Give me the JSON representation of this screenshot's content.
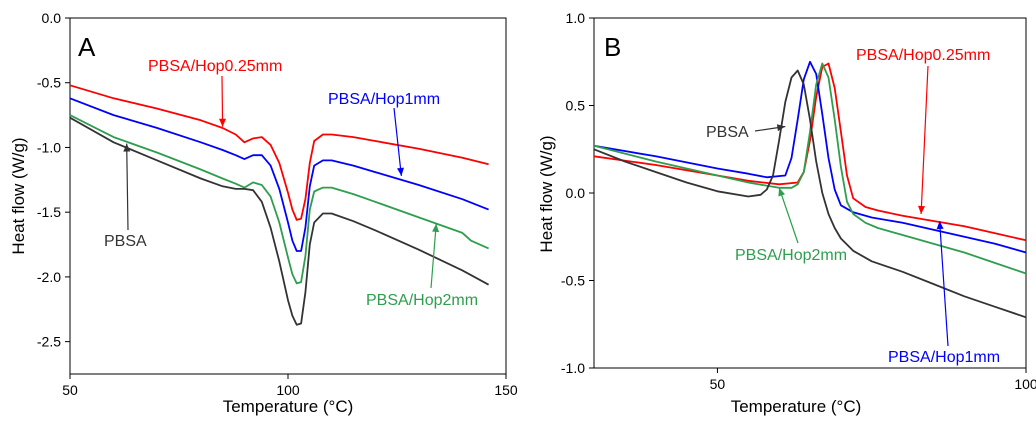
{
  "chart_data": [
    {
      "type": "line",
      "panel_label": "A",
      "xlabel": "Temperature (°C)",
      "ylabel": "Heat flow (W/g)",
      "xlim": [
        50,
        150
      ],
      "ylim": [
        -2.75,
        0.0
      ],
      "xticks": [
        50,
        100,
        150
      ],
      "xtick_labels": [
        "50",
        "100",
        "150"
      ],
      "yticks": [
        0.0,
        -0.5,
        -1.0,
        -1.5,
        -2.0,
        -2.5
      ],
      "ytick_labels": [
        "0.0",
        "-0.5",
        "-1.0",
        "-1.5",
        "-2.0",
        "-2.5"
      ],
      "grid": false,
      "series": [
        {
          "name": "PBSA/Hop0.25mm",
          "color": "#ff0000",
          "x": [
            50,
            60,
            70,
            80,
            85,
            88,
            90,
            92,
            94,
            96,
            98,
            100,
            101,
            102,
            103,
            104,
            105,
            106,
            108,
            110,
            115,
            120,
            130,
            140,
            146
          ],
          "y": [
            -0.52,
            -0.62,
            -0.7,
            -0.79,
            -0.85,
            -0.9,
            -0.96,
            -0.93,
            -0.92,
            -0.98,
            -1.12,
            -1.35,
            -1.48,
            -1.56,
            -1.55,
            -1.4,
            -1.12,
            -0.95,
            -0.9,
            -0.9,
            -0.92,
            -0.95,
            -1.01,
            -1.08,
            -1.13
          ]
        },
        {
          "name": "PBSA/Hop1mm",
          "color": "#0000ff",
          "x": [
            50,
            60,
            70,
            80,
            85,
            88,
            90,
            92,
            94,
            96,
            98,
            100,
            101,
            102,
            103,
            104,
            105,
            106,
            108,
            110,
            115,
            120,
            130,
            140,
            146
          ],
          "y": [
            -0.62,
            -0.75,
            -0.85,
            -0.96,
            -1.02,
            -1.06,
            -1.09,
            -1.06,
            -1.06,
            -1.14,
            -1.32,
            -1.58,
            -1.72,
            -1.8,
            -1.8,
            -1.62,
            -1.3,
            -1.14,
            -1.1,
            -1.1,
            -1.14,
            -1.19,
            -1.29,
            -1.4,
            -1.48
          ]
        },
        {
          "name": "PBSA/Hop2mm",
          "color": "#2e9e4e",
          "x": [
            50,
            60,
            70,
            80,
            85,
            88,
            90,
            92,
            94,
            96,
            98,
            100,
            101,
            102,
            103,
            104,
            105,
            106,
            108,
            110,
            115,
            120,
            130,
            140,
            142,
            146
          ],
          "y": [
            -0.75,
            -0.92,
            -1.04,
            -1.17,
            -1.24,
            -1.28,
            -1.31,
            -1.27,
            -1.29,
            -1.38,
            -1.58,
            -1.85,
            -1.98,
            -2.05,
            -2.04,
            -1.84,
            -1.48,
            -1.34,
            -1.31,
            -1.31,
            -1.36,
            -1.42,
            -1.54,
            -1.66,
            -1.72,
            -1.78
          ]
        },
        {
          "name": "PBSA",
          "color": "#333333",
          "x": [
            50,
            60,
            70,
            80,
            85,
            88,
            90,
            92,
            94,
            96,
            98,
            100,
            101,
            102,
            103,
            104,
            105,
            106,
            108,
            110,
            115,
            120,
            130,
            140,
            146
          ],
          "y": [
            -0.77,
            -0.96,
            -1.1,
            -1.24,
            -1.3,
            -1.32,
            -1.32,
            -1.33,
            -1.42,
            -1.62,
            -1.88,
            -2.18,
            -2.3,
            -2.37,
            -2.36,
            -2.12,
            -1.75,
            -1.58,
            -1.51,
            -1.51,
            -1.57,
            -1.64,
            -1.79,
            -1.95,
            -2.06
          ]
        }
      ],
      "annotations": [
        {
          "text": "PBSA/Hop0.25mm",
          "color": "#ff0000",
          "arrow_to": [
            85,
            -0.84
          ]
        },
        {
          "text": "PBSA/Hop1mm",
          "color": "#0000ff",
          "arrow_to": [
            126,
            -1.22
          ]
        },
        {
          "text": "PBSA/Hop2mm",
          "color": "#2e9e4e",
          "arrow_to": [
            134,
            -1.59
          ]
        },
        {
          "text": "PBSA",
          "color": "#333333",
          "arrow_to": [
            63,
            -0.97
          ]
        }
      ]
    },
    {
      "type": "line",
      "panel_label": "B",
      "xlabel": "Temperature (°C)",
      "ylabel": "Heat flow (W/g)",
      "xlim": [
        30,
        100
      ],
      "ylim": [
        -1.0,
        1.0
      ],
      "xticks": [
        50,
        100
      ],
      "xtick_labels": [
        "50",
        "100"
      ],
      "yticks": [
        1.0,
        0.5,
        0.0,
        -0.5,
        -1.0
      ],
      "ytick_labels": [
        "1.0",
        "0.5",
        "0.0",
        "-0.5",
        "-1.0"
      ],
      "grid": false,
      "series": [
        {
          "name": "PBSA/Hop0.25mm",
          "color": "#ff0000",
          "x": [
            30,
            40,
            50,
            55,
            60,
            63,
            64,
            65,
            66,
            67,
            68,
            69,
            70,
            71,
            72,
            74,
            76,
            80,
            85,
            90,
            95,
            100
          ],
          "y": [
            0.21,
            0.16,
            0.1,
            0.07,
            0.05,
            0.06,
            0.12,
            0.3,
            0.55,
            0.72,
            0.74,
            0.6,
            0.35,
            0.1,
            -0.03,
            -0.08,
            -0.1,
            -0.13,
            -0.16,
            -0.19,
            -0.23,
            -0.27
          ]
        },
        {
          "name": "PBSA/Hop1mm",
          "color": "#0000ff",
          "x": [
            30,
            40,
            50,
            55,
            58,
            61,
            62,
            63,
            64,
            65,
            66,
            67,
            68,
            69,
            70,
            72,
            75,
            80,
            85,
            90,
            95,
            100
          ],
          "y": [
            0.27,
            0.21,
            0.14,
            0.11,
            0.09,
            0.1,
            0.2,
            0.42,
            0.65,
            0.75,
            0.68,
            0.45,
            0.2,
            0.02,
            -0.07,
            -0.11,
            -0.14,
            -0.17,
            -0.21,
            -0.25,
            -0.29,
            -0.34
          ]
        },
        {
          "name": "PBSA/Hop2mm",
          "color": "#2e9e4e",
          "x": [
            30,
            40,
            50,
            55,
            60,
            62,
            63,
            64,
            65,
            66,
            67,
            68,
            69,
            70,
            71,
            72,
            74,
            76,
            80,
            85,
            90,
            95,
            100
          ],
          "y": [
            0.27,
            0.18,
            0.1,
            0.06,
            0.03,
            0.03,
            0.05,
            0.12,
            0.35,
            0.62,
            0.74,
            0.66,
            0.42,
            0.15,
            -0.05,
            -0.12,
            -0.17,
            -0.2,
            -0.24,
            -0.29,
            -0.34,
            -0.4,
            -0.46
          ]
        },
        {
          "name": "PBSA",
          "color": "#333333",
          "x": [
            30,
            35,
            40,
            45,
            50,
            55,
            57,
            58,
            59,
            60,
            61,
            62,
            63,
            64,
            65,
            66,
            67,
            68,
            69,
            70,
            72,
            75,
            80,
            85,
            90,
            95,
            100
          ],
          "y": [
            0.25,
            0.18,
            0.12,
            0.06,
            0.01,
            -0.02,
            -0.01,
            0.02,
            0.1,
            0.3,
            0.52,
            0.66,
            0.7,
            0.62,
            0.42,
            0.18,
            0.0,
            -0.12,
            -0.2,
            -0.26,
            -0.33,
            -0.39,
            -0.45,
            -0.52,
            -0.59,
            -0.65,
            -0.71
          ]
        }
      ],
      "annotations": [
        {
          "text": "PBSA",
          "color": "#333333",
          "arrow_to": [
            61,
            0.38
          ]
        },
        {
          "text": "PBSA/Hop0.25mm",
          "color": "#ff0000",
          "arrow_to": [
            83,
            -0.12
          ]
        },
        {
          "text": "PBSA/Hop2mm",
          "color": "#2e9e4e",
          "arrow_to": [
            60,
            0.03
          ]
        },
        {
          "text": "PBSA/Hop1mm",
          "color": "#0000ff",
          "arrow_to": [
            86,
            -0.16
          ]
        }
      ]
    }
  ]
}
